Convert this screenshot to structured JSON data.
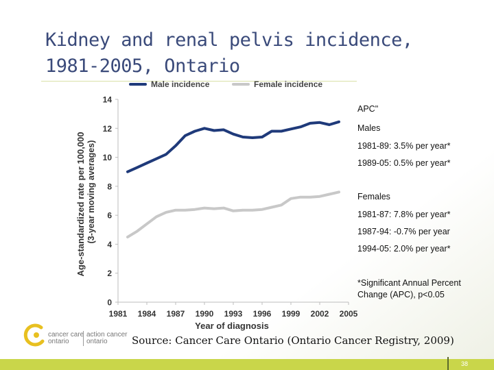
{
  "slide": {
    "title_line1": "Kidney and renal pelvis incidence,",
    "title_line2": "1981-2005, Ontario",
    "source": "Source: Cancer Care Ontario (Ontario Cancer Registry, 2009)",
    "page_number": "38",
    "logo": {
      "line1_left": "cancer care",
      "line2_left": "ontario",
      "line1_right": "action cancer",
      "line2_right": "ontario"
    },
    "annotations": [
      "APC\"",
      "Males",
      "1981-89: 3.5% per year*",
      "1989-05: 0.5% per year*",
      "Females",
      "1981-87:  7.8% per year*",
      "1987-94: -0.7% per year",
      "1994-05:  2.0% per year*",
      "*Significant Annual Percent",
      "Change (APC), p<0.05"
    ],
    "colors": {
      "title": "#3a4a7a",
      "male_line": "#1f3a7a",
      "female_line": "#c8c8c8",
      "footer_bar": "#c9d64a",
      "logo_accent": "#e8c020"
    }
  },
  "chart_data": {
    "type": "line",
    "xlabel": "Year of diagnosis",
    "ylabel_line1": "Age-standardized rate per 100,000",
    "ylabel_line2": "(3-year moving averages)",
    "xlim": [
      1981,
      2005
    ],
    "ylim": [
      0,
      14
    ],
    "xticks": [
      1981,
      1984,
      1987,
      1990,
      1993,
      1996,
      1999,
      2002,
      2005
    ],
    "yticks": [
      0,
      2,
      4,
      6,
      8,
      10,
      12,
      14
    ],
    "grid": false,
    "legend_position": "top",
    "x": [
      1982,
      1983,
      1984,
      1985,
      1986,
      1987,
      1988,
      1989,
      1990,
      1991,
      1992,
      1993,
      1994,
      1995,
      1996,
      1997,
      1998,
      1999,
      2000,
      2001,
      2002,
      2003,
      2004
    ],
    "series": [
      {
        "name": "Male incidence",
        "color": "#1f3a7a",
        "values": [
          9.0,
          9.3,
          9.6,
          9.9,
          10.2,
          10.8,
          11.5,
          11.8,
          12.0,
          11.85,
          11.9,
          11.6,
          11.4,
          11.35,
          11.4,
          11.8,
          11.8,
          11.95,
          12.1,
          12.35,
          12.4,
          12.25,
          12.45
        ]
      },
      {
        "name": "Female incidence",
        "color": "#c8c8c8",
        "values": [
          4.5,
          4.9,
          5.4,
          5.9,
          6.2,
          6.35,
          6.35,
          6.4,
          6.5,
          6.45,
          6.5,
          6.3,
          6.35,
          6.35,
          6.4,
          6.55,
          6.7,
          7.15,
          7.25,
          7.25,
          7.3,
          7.45,
          7.6
        ]
      }
    ]
  }
}
